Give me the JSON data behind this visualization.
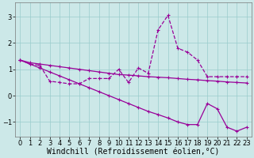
{
  "xlabel": "Windchill (Refroidissement éolien,°C)",
  "x_ticks": [
    0,
    1,
    2,
    3,
    4,
    5,
    6,
    7,
    8,
    9,
    10,
    11,
    12,
    13,
    14,
    15,
    16,
    17,
    18,
    19,
    20,
    21,
    22,
    23
  ],
  "ylim": [
    -1.55,
    3.55
  ],
  "xlim": [
    -0.5,
    23.5
  ],
  "yticks": [
    -1,
    0,
    1,
    2,
    3
  ],
  "line1_x": [
    0,
    1,
    2,
    3,
    4,
    5,
    6,
    7,
    8,
    9,
    10,
    11,
    12,
    13,
    14,
    15,
    16,
    17,
    18,
    19,
    20,
    21,
    22,
    23
  ],
  "line1_y": [
    1.35,
    1.2,
    1.15,
    0.55,
    0.5,
    0.45,
    0.45,
    0.65,
    0.65,
    0.65,
    1.0,
    0.5,
    1.05,
    0.85,
    2.5,
    3.05,
    1.8,
    1.65,
    1.35,
    0.72,
    0.72,
    0.72,
    0.72,
    0.72
  ],
  "line2_x": [
    0,
    1,
    2,
    3,
    4,
    5,
    6,
    7,
    8,
    9,
    10,
    11,
    12,
    13,
    14,
    15,
    16,
    17,
    18,
    19,
    20,
    21,
    22,
    23
  ],
  "line2_y": [
    1.35,
    1.25,
    1.2,
    1.15,
    1.1,
    1.05,
    1.0,
    0.95,
    0.9,
    0.85,
    0.8,
    0.78,
    0.75,
    0.72,
    0.7,
    0.68,
    0.65,
    0.62,
    0.6,
    0.57,
    0.55,
    0.52,
    0.5,
    0.48
  ],
  "line3_x": [
    0,
    1,
    2,
    3,
    4,
    5,
    6,
    7,
    8,
    9,
    10,
    11,
    12,
    13,
    14,
    15,
    16,
    17,
    18,
    19,
    20,
    21,
    22,
    23
  ],
  "line3_y": [
    1.35,
    1.2,
    1.05,
    0.9,
    0.75,
    0.6,
    0.45,
    0.3,
    0.15,
    0.0,
    -0.15,
    -0.3,
    -0.45,
    -0.6,
    -0.72,
    -0.85,
    -1.0,
    -1.1,
    -1.1,
    -0.3,
    -0.5,
    -1.2,
    -1.35,
    -1.2
  ],
  "line_color": "#990099",
  "bg_color": "#cce8e8",
  "grid_color": "#99cccc",
  "tick_fontsize": 6,
  "label_fontsize": 7
}
